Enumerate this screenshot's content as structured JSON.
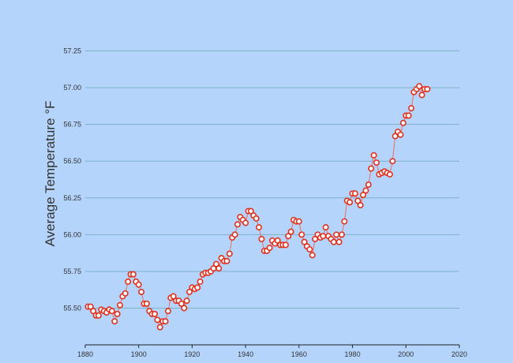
{
  "chart_data": {
    "type": "line",
    "title": "",
    "xlabel": "",
    "ylabel": "Average Temperature °F",
    "xlim": [
      1880,
      2020
    ],
    "ylim": [
      55.25,
      57.5
    ],
    "x_ticks": [
      1880,
      1900,
      1920,
      1940,
      1960,
      1980,
      2000,
      2020
    ],
    "x_tick_labels": [
      "1880",
      "1900",
      "1920",
      "1940",
      "1960",
      "1980",
      "2000",
      "2020"
    ],
    "y_ticks": [
      55.5,
      55.75,
      56.0,
      56.25,
      56.5,
      56.75,
      57.0,
      57.25
    ],
    "y_tick_labels": [
      "55.50",
      "55.75",
      "56.00",
      "56.25",
      "56.50",
      "56.75",
      "57.00",
      "57.25"
    ],
    "grid": "horizontal",
    "legend": "none",
    "colors": {
      "background": "#b4d4fc",
      "grid": "#7fb0c8",
      "line": "#e87060",
      "marker_stroke": "#e0301e",
      "marker_fill": "#ffffff",
      "axis": "#222222"
    },
    "series": [
      {
        "x": [
          1881,
          1882,
          1883,
          1884,
          1885,
          1886,
          1887,
          1888,
          1889,
          1890,
          1891,
          1892,
          1893,
          1894,
          1895,
          1896,
          1897,
          1898,
          1899,
          1900,
          1901,
          1902,
          1903,
          1904,
          1905,
          1906,
          1907,
          1908,
          1909,
          1910,
          1911,
          1912,
          1913,
          1914,
          1915,
          1916,
          1917,
          1918,
          1919,
          1920,
          1921,
          1922,
          1923,
          1924,
          1925,
          1926,
          1927,
          1928,
          1929,
          1930,
          1931,
          1932,
          1933,
          1934,
          1935,
          1936,
          1937,
          1938,
          1939,
          1940,
          1941,
          1942,
          1943,
          1944,
          1945,
          1946,
          1947,
          1948,
          1949,
          1950,
          1951,
          1952,
          1953,
          1954,
          1955,
          1956,
          1957,
          1958,
          1959,
          1960,
          1961,
          1962,
          1963,
          1964,
          1965,
          1966,
          1967,
          1968,
          1969,
          1970,
          1971,
          1972,
          1973,
          1974,
          1975,
          1976,
          1977,
          1978,
          1979,
          1980,
          1981,
          1982,
          1983,
          1984,
          1985,
          1986,
          1987,
          1988,
          1989,
          1990,
          1991,
          1992,
          1993,
          1994,
          1995,
          1996,
          1997,
          1998,
          1999,
          2000,
          2001,
          2002,
          2003,
          2004,
          2005,
          2006,
          2007,
          2008
        ],
        "values": [
          55.51,
          55.51,
          55.48,
          55.45,
          55.45,
          55.49,
          55.48,
          55.47,
          55.49,
          55.48,
          55.41,
          55.46,
          55.52,
          55.58,
          55.6,
          55.68,
          55.73,
          55.73,
          55.68,
          55.66,
          55.61,
          55.53,
          55.53,
          55.48,
          55.46,
          55.46,
          55.42,
          55.37,
          55.41,
          55.41,
          55.48,
          55.57,
          55.58,
          55.55,
          55.55,
          55.53,
          55.5,
          55.55,
          55.61,
          55.64,
          55.63,
          55.64,
          55.68,
          55.73,
          55.74,
          55.74,
          55.75,
          55.77,
          55.8,
          55.77,
          55.84,
          55.82,
          55.82,
          55.87,
          55.98,
          56.0,
          56.07,
          56.12,
          56.1,
          56.08,
          56.16,
          56.16,
          56.13,
          56.11,
          56.05,
          55.97,
          55.89,
          55.89,
          55.91,
          55.96,
          55.94,
          55.96,
          55.93,
          55.93,
          55.93,
          55.99,
          56.02,
          56.1,
          56.09,
          56.09,
          56.0,
          55.95,
          55.92,
          55.9,
          55.86,
          55.97,
          56.0,
          55.98,
          55.99,
          56.05,
          55.99,
          55.97,
          55.95,
          56.0,
          55.95,
          56.0,
          56.09,
          56.23,
          56.22,
          56.28,
          56.28,
          56.23,
          56.2,
          56.27,
          56.3,
          56.34,
          56.45,
          56.54,
          56.49,
          56.41,
          56.42,
          56.43,
          56.42,
          56.41,
          56.5,
          56.67,
          56.7,
          56.68,
          56.76,
          56.81,
          56.81,
          56.86,
          56.97,
          56.99,
          57.01,
          56.95,
          56.99,
          56.99
        ]
      }
    ]
  }
}
